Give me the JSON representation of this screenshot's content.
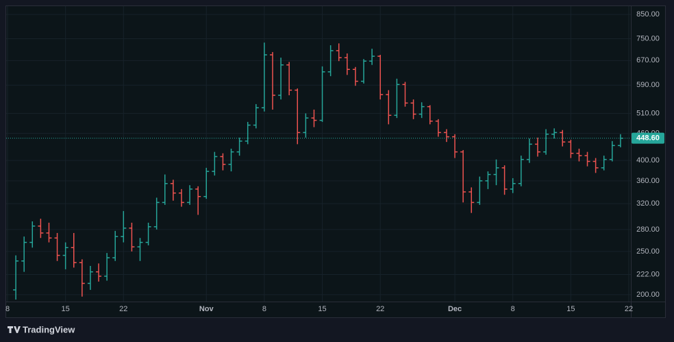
{
  "chart_data": {
    "type": "ohlc",
    "log_scale": true,
    "grid": true,
    "up_color": "#26a69a",
    "down_color": "#ef5350",
    "x": [
      "Oct 9",
      "Oct 10",
      "Oct 11",
      "Oct 12",
      "Oct 13",
      "Oct 14",
      "Oct 15",
      "Oct 16",
      "Oct 17",
      "Oct 18",
      "Oct 19",
      "Oct 20",
      "Oct 21",
      "Oct 22",
      "Oct 23",
      "Oct 24",
      "Oct 25",
      "Oct 26",
      "Oct 27",
      "Oct 28",
      "Oct 29",
      "Oct 30",
      "Oct 31",
      "Nov 1",
      "Nov 2",
      "Nov 3",
      "Nov 4",
      "Nov 5",
      "Nov 6",
      "Nov 7",
      "Nov 8",
      "Nov 9",
      "Nov 10",
      "Nov 11",
      "Nov 12",
      "Nov 13",
      "Nov 14",
      "Nov 15",
      "Nov 16",
      "Nov 17",
      "Nov 18",
      "Nov 19",
      "Nov 20",
      "Nov 21",
      "Nov 22",
      "Nov 23",
      "Nov 24",
      "Nov 25",
      "Nov 26",
      "Nov 27",
      "Nov 28",
      "Nov 29",
      "Nov 30",
      "Dec 1",
      "Dec 2",
      "Dec 3",
      "Dec 4",
      "Dec 5",
      "Dec 6",
      "Dec 7",
      "Dec 8",
      "Dec 9",
      "Dec 10",
      "Dec 11",
      "Dec 12",
      "Dec 13",
      "Dec 14",
      "Dec 15",
      "Dec 16",
      "Dec 17",
      "Dec 18",
      "Dec 19",
      "Dec 20",
      "Dec 21"
    ],
    "open": [
      205,
      238,
      262,
      285,
      275,
      268,
      245,
      255,
      236,
      212,
      225,
      220,
      242,
      270,
      282,
      256,
      262,
      284,
      322,
      355,
      338,
      322,
      345,
      332,
      378,
      408,
      392,
      418,
      442,
      480,
      525,
      690,
      560,
      655,
      575,
      462,
      498,
      492,
      632,
      705,
      680,
      640,
      602,
      668,
      685,
      562,
      505,
      592,
      538,
      508,
      528,
      490,
      462,
      452,
      418,
      340,
      322,
      360,
      372,
      385,
      345,
      355,
      402,
      435,
      418,
      458,
      462,
      440,
      415,
      410,
      398,
      385,
      402,
      432
    ],
    "high": [
      245,
      270,
      292,
      296,
      290,
      275,
      262,
      275,
      240,
      232,
      235,
      248,
      278,
      308,
      290,
      268,
      290,
      330,
      372,
      362,
      345,
      352,
      350,
      385,
      418,
      415,
      425,
      450,
      488,
      535,
      735,
      700,
      680,
      665,
      580,
      510,
      520,
      650,
      725,
      732,
      695,
      648,
      675,
      712,
      690,
      575,
      610,
      600,
      548,
      540,
      532,
      495,
      470,
      458,
      422,
      348,
      368,
      378,
      402,
      390,
      365,
      410,
      448,
      450,
      470,
      472,
      468,
      445,
      425,
      418,
      405,
      410,
      442,
      458
    ],
    "low": [
      195,
      225,
      255,
      268,
      262,
      238,
      228,
      230,
      198,
      205,
      214,
      215,
      238,
      262,
      250,
      238,
      258,
      280,
      318,
      325,
      315,
      318,
      302,
      328,
      370,
      380,
      378,
      410,
      435,
      472,
      515,
      520,
      548,
      560,
      435,
      450,
      475,
      488,
      618,
      668,
      622,
      588,
      595,
      655,
      548,
      482,
      498,
      528,
      495,
      498,
      482,
      452,
      440,
      405,
      322,
      305,
      318,
      345,
      352,
      335,
      338,
      350,
      395,
      408,
      412,
      448,
      430,
      405,
      398,
      388,
      375,
      380,
      398,
      428
    ],
    "close": [
      238,
      262,
      285,
      275,
      268,
      245,
      255,
      236,
      212,
      225,
      220,
      242,
      270,
      282,
      256,
      262,
      284,
      322,
      355,
      338,
      322,
      345,
      332,
      378,
      408,
      392,
      418,
      442,
      480,
      525,
      690,
      560,
      655,
      575,
      462,
      498,
      492,
      632,
      705,
      680,
      640,
      602,
      668,
      685,
      562,
      505,
      592,
      538,
      508,
      528,
      490,
      462,
      452,
      418,
      340,
      322,
      360,
      372,
      385,
      345,
      355,
      402,
      435,
      418,
      458,
      462,
      440,
      415,
      410,
      398,
      385,
      402,
      432,
      448.6
    ],
    "xlim": [
      "Oct 8",
      "Dec 22"
    ],
    "xticks": [
      {
        "value": "Oct 8",
        "label": "8"
      },
      {
        "value": "Oct 15",
        "label": "15"
      },
      {
        "value": "Oct 22",
        "label": "22"
      },
      {
        "value": "Nov 1",
        "label": "Nov"
      },
      {
        "value": "Nov 8",
        "label": "8"
      },
      {
        "value": "Nov 15",
        "label": "15"
      },
      {
        "value": "Nov 22",
        "label": "22"
      },
      {
        "value": "Dec 1",
        "label": "Dec"
      },
      {
        "value": "Dec 8",
        "label": "8"
      },
      {
        "value": "Dec 15",
        "label": "15"
      },
      {
        "value": "Dec 22",
        "label": "22"
      }
    ],
    "ylim": [
      193,
      884
    ],
    "yticks": [
      {
        "value": 200,
        "label": "200.00"
      },
      {
        "value": 222,
        "label": "222.00"
      },
      {
        "value": 250,
        "label": "250.00"
      },
      {
        "value": 280,
        "label": "280.00"
      },
      {
        "value": 320,
        "label": "320.00"
      },
      {
        "value": 360,
        "label": "360.00"
      },
      {
        "value": 400,
        "label": "400.00"
      },
      {
        "value": 460,
        "label": "460.00"
      },
      {
        "value": 510,
        "label": "510.00"
      },
      {
        "value": 590,
        "label": "590.00"
      },
      {
        "value": 670,
        "label": "670.00"
      },
      {
        "value": 750,
        "label": "750.00"
      },
      {
        "value": 850,
        "label": "850.00"
      }
    ],
    "last_price": {
      "value": 448.6,
      "label": "448.60"
    }
  },
  "branding": "TradingView"
}
